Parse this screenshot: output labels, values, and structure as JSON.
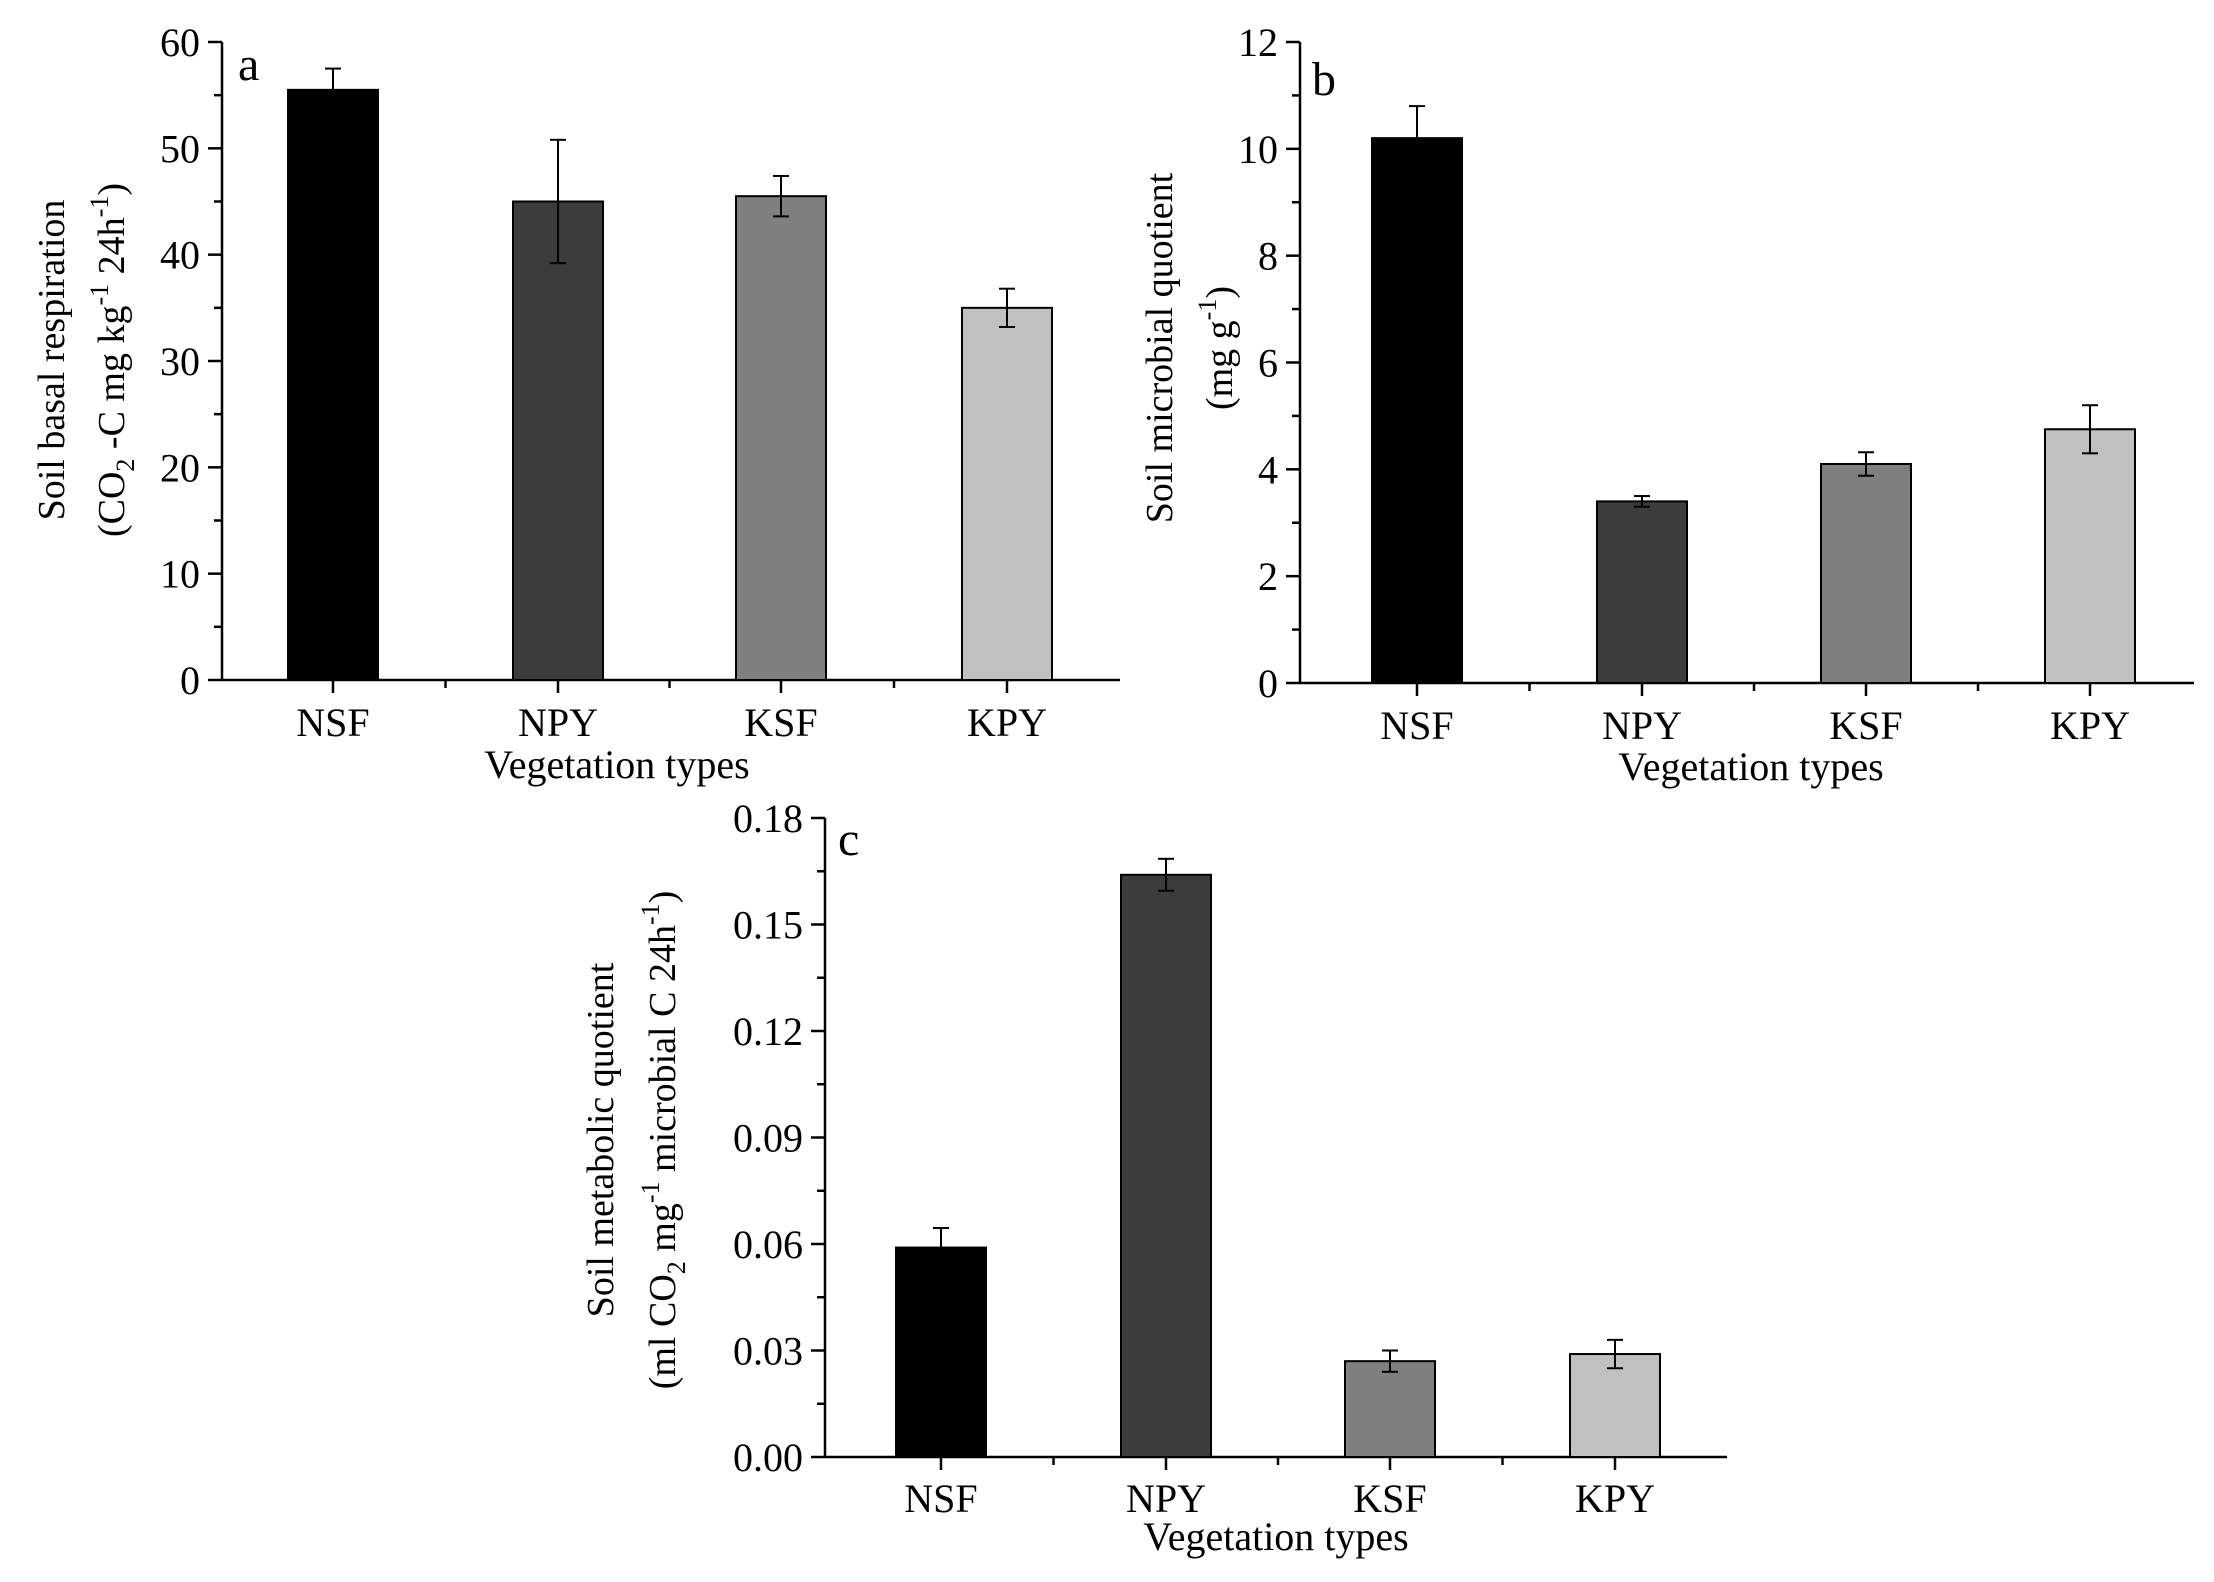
{
  "chart_data": [
    {
      "type": "bar",
      "panel": "a",
      "categories": [
        "NSF",
        "NPY",
        "KSF",
        "KPY"
      ],
      "values": [
        55.5,
        45.0,
        45.5,
        35.0
      ],
      "errors": [
        2.0,
        5.8,
        1.9,
        1.8
      ],
      "colors": [
        "#000000",
        "#3c3c3c",
        "#7f7f7f",
        "#c0c0c0"
      ],
      "ylim": [
        0,
        60
      ],
      "yticks": [
        0,
        10,
        20,
        30,
        40,
        50,
        60
      ],
      "ytick_labels": [
        "0",
        "10",
        "20",
        "30",
        "40",
        "50",
        "60"
      ],
      "xlabel": "Vegetation types",
      "ylabel": {
        "line1": "Soil basal respiration",
        "line2_parts": [
          {
            "t": "(CO"
          },
          {
            "t": "2",
            "sub": true
          },
          {
            "t": " -C mg kg"
          },
          {
            "t": "-1",
            "sup": true
          },
          {
            "t": " 24h"
          },
          {
            "t": "-1",
            "sup": true
          },
          {
            "t": ")"
          }
        ]
      }
    },
    {
      "type": "bar",
      "panel": "b",
      "categories": [
        "NSF",
        "NPY",
        "KSF",
        "KPY"
      ],
      "values": [
        10.2,
        3.4,
        4.1,
        4.75
      ],
      "errors": [
        0.6,
        0.1,
        0.22,
        0.45
      ],
      "colors": [
        "#000000",
        "#3c3c3c",
        "#7f7f7f",
        "#c0c0c0"
      ],
      "ylim": [
        0,
        12
      ],
      "yticks": [
        0,
        2,
        4,
        6,
        8,
        10,
        12
      ],
      "ytick_labels": [
        "0",
        "2",
        "4",
        "6",
        "8",
        "10",
        "12"
      ],
      "xlabel": "Vegetation types",
      "ylabel": {
        "line1": "Soil microbial quotient",
        "line2_parts": [
          {
            "t": "(mg g"
          },
          {
            "t": "-1",
            "sup": true
          },
          {
            "t": ")"
          }
        ]
      }
    },
    {
      "type": "bar",
      "panel": "c",
      "categories": [
        "NSF",
        "NPY",
        "KSF",
        "KPY"
      ],
      "values": [
        0.059,
        0.164,
        0.027,
        0.029
      ],
      "errors": [
        0.0055,
        0.0045,
        0.003,
        0.004
      ],
      "colors": [
        "#000000",
        "#3c3c3c",
        "#7f7f7f",
        "#c0c0c0"
      ],
      "ylim": [
        0,
        0.18
      ],
      "yticks": [
        0,
        0.03,
        0.06,
        0.09,
        0.12,
        0.15,
        0.18
      ],
      "ytick_labels": [
        "0.00",
        "0.03",
        "0.06",
        "0.09",
        "0.12",
        "0.15",
        "0.18"
      ],
      "xlabel": "Vegetation types",
      "ylabel": {
        "line1": "Soil metabolic quotient",
        "line2_parts": [
          {
            "t": "(ml CO"
          },
          {
            "t": "2",
            "sub": true
          },
          {
            "t": " mg"
          },
          {
            "t": "-1",
            "sup": true
          },
          {
            "t": " microbial C 24h"
          },
          {
            "t": "-1",
            "sup": true
          },
          {
            "t": ")"
          }
        ]
      }
    }
  ]
}
